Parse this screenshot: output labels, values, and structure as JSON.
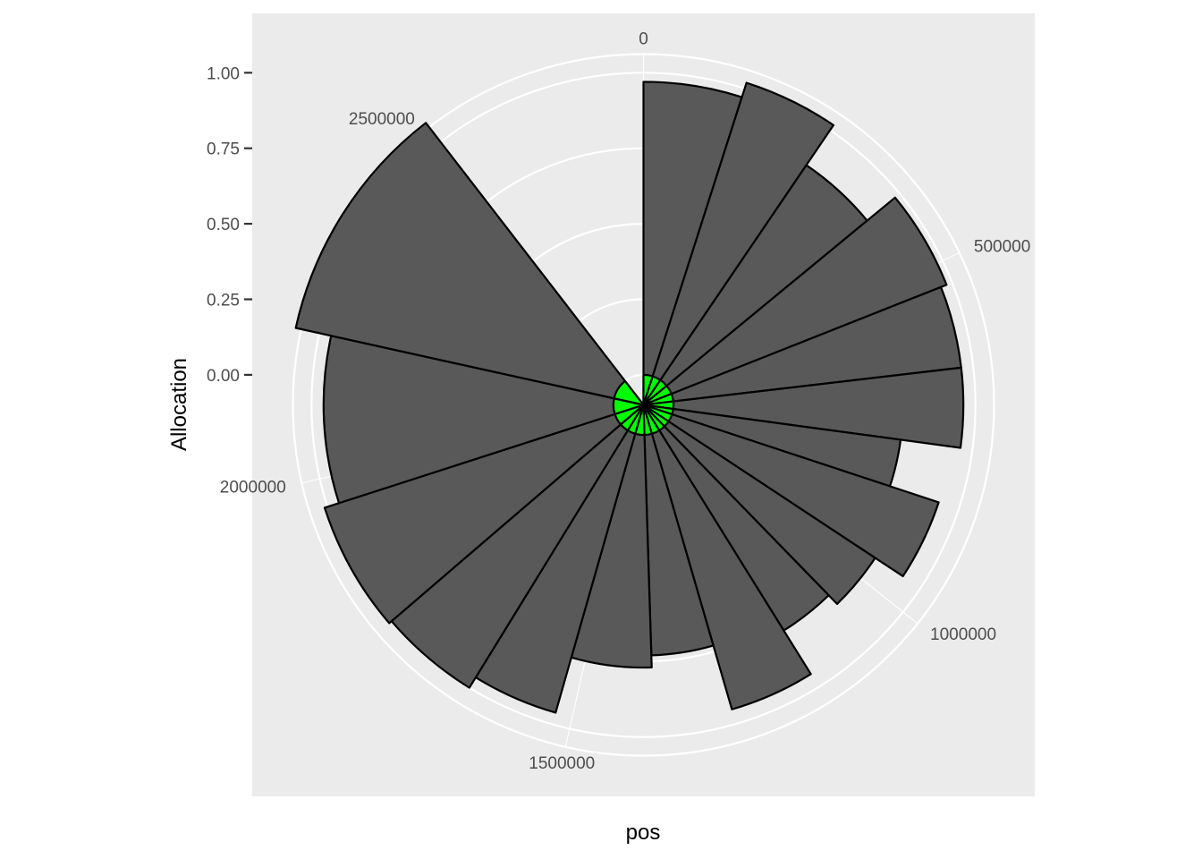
{
  "chart_data": {
    "type": "bar",
    "coord": "polar",
    "xlabel": "pos",
    "ylabel": "Allocation",
    "x_range": [
      0,
      2800000
    ],
    "x_breaks": [
      0,
      500000,
      1000000,
      1500000,
      2000000,
      2500000
    ],
    "x_break_labels": [
      "0",
      "500000",
      "1000000",
      "1500000",
      "2000000",
      "2500000"
    ],
    "y_range": [
      -0.2,
      1.1
    ],
    "y_breaks": [
      0.0,
      0.25,
      0.5,
      0.75,
      1.0
    ],
    "y_break_labels": [
      "0.00",
      "0.25",
      "0.50",
      "0.75",
      "1.00"
    ],
    "grid": true,
    "bars": [
      {
        "x0": 0,
        "x1": 138000,
        "value": 0.97
      },
      {
        "x0": 138000,
        "x1": 266000,
        "value": 1.02
      },
      {
        "x0": 266000,
        "x1": 393000,
        "value": 0.86
      },
      {
        "x0": 393000,
        "x1": 532000,
        "value": 0.98
      },
      {
        "x0": 532000,
        "x1": 648000,
        "value": 0.96
      },
      {
        "x0": 648000,
        "x1": 760000,
        "value": 0.96
      },
      {
        "x0": 760000,
        "x1": 842000,
        "value": 0.76
      },
      {
        "x0": 842000,
        "x1": 960000,
        "value": 0.93
      },
      {
        "x0": 960000,
        "x1": 1056000,
        "value": 0.82
      },
      {
        "x0": 1056000,
        "x1": 1152000,
        "value": 0.78
      },
      {
        "x0": 1152000,
        "x1": 1274000,
        "value": 0.95
      },
      {
        "x0": 1274000,
        "x1": 1386000,
        "value": 0.73
      },
      {
        "x0": 1386000,
        "x1": 1524000,
        "value": 0.77
      },
      {
        "x0": 1524000,
        "x1": 1646000,
        "value": 0.96
      },
      {
        "x0": 1646000,
        "x1": 1784000,
        "value": 1.0
      },
      {
        "x0": 1784000,
        "x1": 1961000,
        "value": 1.01
      },
      {
        "x0": 1961000,
        "x1": 2197000,
        "value": 0.96
      },
      {
        "x0": 2197000,
        "x1": 2507000,
        "value": 1.08
      }
    ],
    "bar_fill": "#595959",
    "bar_outline": "#000000",
    "inner_fill": "#00ff00",
    "inner_value": 0.0,
    "panel_background": "#ebebeb",
    "grid_color": "#ffffff"
  }
}
